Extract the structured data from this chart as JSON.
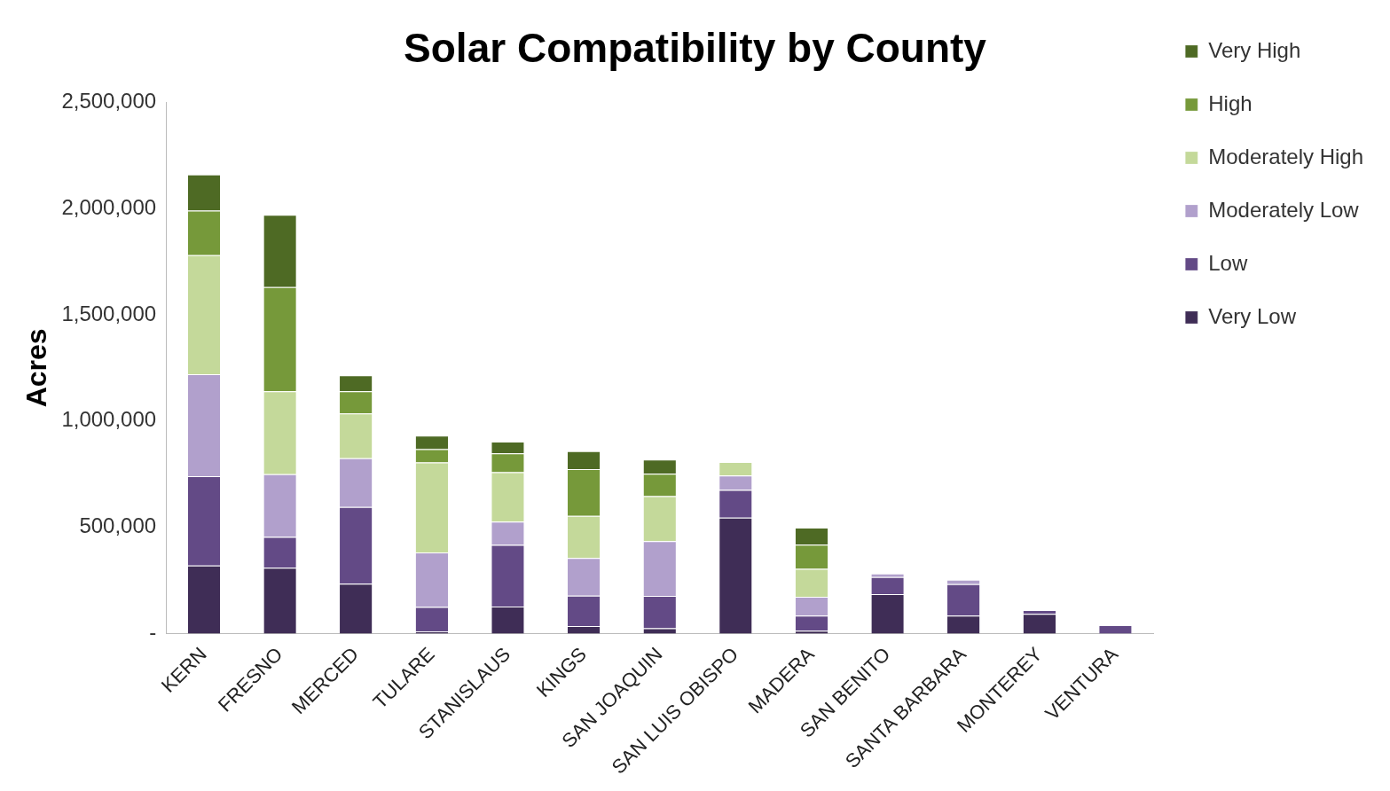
{
  "chart_data": {
    "type": "bar",
    "title": "Solar Compatibility by County",
    "ylabel": "Acres",
    "categories": [
      "KERN",
      "FRESNO",
      "MERCED",
      "TULARE",
      "STANISLAUS",
      "KINGS",
      "SAN JOAQUIN",
      "SAN LUIS OBISPO",
      "MADERA",
      "SAN BENITO",
      "SANTA BARBARA",
      "MONTEREY",
      "VENTURA"
    ],
    "stacked": true,
    "series": [
      {
        "name": "Very Low",
        "color": "#3f2d56",
        "values": [
          320000,
          310000,
          235000,
          10000,
          127000,
          35000,
          25000,
          545000,
          13000,
          186000,
          84000,
          93000,
          0
        ]
      },
      {
        "name": "Low",
        "color": "#634a86",
        "values": [
          420000,
          145000,
          360000,
          115000,
          290000,
          143000,
          152000,
          131000,
          71000,
          80000,
          148000,
          17000,
          40000
        ]
      },
      {
        "name": "Moderately Low",
        "color": "#b1a0cc",
        "values": [
          480000,
          295000,
          230000,
          257000,
          110000,
          178000,
          258000,
          67000,
          89000,
          17000,
          21000,
          0,
          0
        ]
      },
      {
        "name": "Moderately High",
        "color": "#c4d99a",
        "values": [
          560000,
          390000,
          210000,
          423000,
          232000,
          198000,
          211000,
          64000,
          131000,
          0,
          0,
          0,
          0
        ]
      },
      {
        "name": "High",
        "color": "#76993a",
        "values": [
          210000,
          490000,
          105000,
          63000,
          89000,
          220000,
          106000,
          0,
          114000,
          0,
          0,
          0,
          0
        ]
      },
      {
        "name": "Very High",
        "color": "#4e6a24",
        "values": [
          170000,
          340000,
          75000,
          63000,
          55000,
          84000,
          67000,
          0,
          80000,
          0,
          0,
          0,
          0
        ]
      }
    ],
    "ylim": [
      0,
      2500000
    ],
    "yticks": [
      {
        "value": 0,
        "label": "-"
      },
      {
        "value": 500000,
        "label": "500,000"
      },
      {
        "value": 1000000,
        "label": "1,000,000"
      },
      {
        "value": 1500000,
        "label": "1,500,000"
      },
      {
        "value": 2000000,
        "label": "2,000,000"
      },
      {
        "value": 2500000,
        "label": "2,500,000"
      }
    ],
    "grid": false,
    "legend": "right"
  }
}
